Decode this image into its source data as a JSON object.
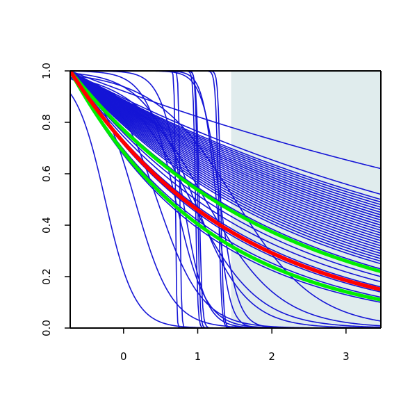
{
  "chart_data": {
    "type": "line",
    "title": "",
    "xlabel": "",
    "ylabel": "",
    "xlim": [
      -0.72,
      3.47
    ],
    "ylim": [
      0,
      1
    ],
    "x_ticks": [
      0,
      1,
      2,
      3
    ],
    "x_tick_labels": [
      "0",
      "1",
      "2",
      "3"
    ],
    "y_ticks": [
      0,
      0.2,
      0.4,
      0.6,
      0.8,
      1
    ],
    "y_tick_labels": [
      "0.0",
      "0.2",
      "0.4",
      "0.6",
      "0.8",
      "1.0"
    ],
    "grid": false,
    "legend": "none",
    "shaded_region": {
      "x_from": 1.45,
      "x_to": 3.47,
      "color": "#e0eced"
    },
    "colors": {
      "curves": "#1515d6",
      "highlight": "#ff0000",
      "band": "#00ee00",
      "axis": "#000000"
    },
    "series": [
      {
        "kind": "exp",
        "x_end": [
          0.62,
          0.52,
          0.5,
          0.49,
          0.48,
          0.47,
          0.46,
          0.45,
          0.44,
          0.44,
          0.43,
          0.43,
          0.42,
          0.41,
          0.4,
          0.4,
          0.39,
          0.38,
          0.37,
          0.36,
          0.35,
          0.34,
          0.33,
          0.32,
          0.31,
          0.3,
          0.29,
          0.28,
          0.27,
          0.26,
          0.25,
          0.23,
          0.22,
          0.2,
          0.18,
          0.16,
          0.14,
          0.12,
          0.11,
          0.1
        ]
      },
      {
        "kind": "step",
        "center": 0.7,
        "width": 0.008
      },
      {
        "kind": "step",
        "center": 0.76,
        "width": 0.01
      },
      {
        "kind": "step",
        "center": 0.97,
        "width": 0.015
      },
      {
        "kind": "step",
        "center": 1.0,
        "width": 0.015
      },
      {
        "kind": "step",
        "center": 1.02,
        "width": 0.02
      },
      {
        "kind": "step",
        "center": 1.28,
        "width": 0.02
      },
      {
        "kind": "step",
        "center": 1.31,
        "width": 0.018
      },
      {
        "kind": "logistic",
        "center": -0.25,
        "width": 0.2
      },
      {
        "kind": "logistic",
        "center": 0.15,
        "width": 0.25
      },
      {
        "kind": "logistic",
        "center": 0.45,
        "width": 0.3
      },
      {
        "kind": "logistic",
        "center": 0.7,
        "width": 0.2
      },
      {
        "kind": "logistic",
        "center": 0.95,
        "width": 0.35
      },
      {
        "kind": "logistic",
        "center": 0.8,
        "width": 0.15
      },
      {
        "kind": "logistic",
        "center": 1.3,
        "width": 0.12
      },
      {
        "kind": "logistic",
        "center": 1.1,
        "width": 0.5
      },
      {
        "kind": "logistic",
        "center": 1.25,
        "width": 0.09
      },
      {
        "kind": "logistic",
        "center": 1.5,
        "width": 0.55
      },
      {
        "kind": "logistic",
        "center": 0.9,
        "width": 0.45
      }
    ],
    "highlight": {
      "x_end": 0.15
    },
    "band": {
      "x_end": [
        0.11,
        0.22
      ]
    }
  }
}
